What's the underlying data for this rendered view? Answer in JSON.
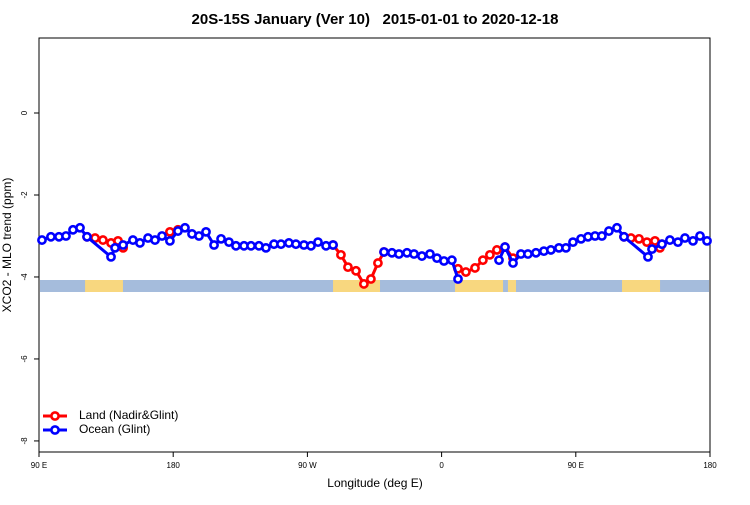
{
  "chart_data": {
    "type": "line",
    "title": "20S-15S January (Ver 10)   2015-01-01 to 2020-12-18",
    "x_label": "Longitude (deg E)",
    "y_label": "XCO2 - MLO trend (ppm)",
    "xlim": [
      90,
      540
    ],
    "ylim": [
      -8.27,
      1.83
    ],
    "xticks": [
      {
        "value": 90,
        "label": "90 E"
      },
      180,
      {
        "value": 270,
        "label": "90 W"
      },
      {
        "value": 360,
        "label": "0"
      },
      {
        "value": 450,
        "label": "90 E"
      },
      {
        "value": 540,
        "label": "180"
      }
    ],
    "yticks": [
      -8,
      -6,
      -4,
      -2,
      0
    ],
    "legend": "bottomleft",
    "land_spans": [
      [
        120.9,
        146.3
      ],
      [
        287.2,
        318.7
      ],
      [
        369.0,
        401.2
      ],
      [
        404.5,
        409.9
      ],
      [
        481.0,
        506.5
      ]
    ],
    "land_color": "#f8d77f",
    "ocean_color": "#a5bcdc",
    "series": [
      {
        "name": "Land (Nadir&Glint)",
        "color": "#ff0000",
        "x": [
          122.2,
          127.6,
          132.9,
          138.3,
          143.0,
          146.4,
          null,
          177.8,
          183.2,
          null,
          287.2,
          292.5,
          297.2,
          302.6,
          307.9,
          312.6,
          317.3,
          321.4,
          null,
          371.0,
          376.3,
          382.4,
          387.7,
          392.4,
          397.1,
          402.5,
          407.9,
          null,
          482.3,
          487.0,
          492.4,
          497.7,
          503.1,
          506.4,
          507.8
        ],
        "values": [
          -3.02,
          -3.05,
          -3.1,
          -3.17,
          -3.12,
          -3.29,
          null,
          -2.9,
          -2.85,
          null,
          -3.22,
          -3.46,
          -3.76,
          -3.85,
          -4.17,
          -4.05,
          -3.66,
          -3.39,
          null,
          -3.8,
          -3.88,
          -3.78,
          -3.59,
          -3.46,
          -3.34,
          -3.27,
          -3.54,
          null,
          -3.02,
          -3.05,
          -3.07,
          -3.15,
          -3.12,
          -3.29,
          -3.2
        ]
      },
      {
        "name": "Ocean (Glint)",
        "color": "#0000ff",
        "x": [
          92.0,
          98.0,
          103.4,
          108.1,
          112.8,
          117.5,
          122.2,
          138.3,
          141.0,
          146.4,
          153.0,
          157.7,
          163.1,
          167.8,
          172.5,
          177.8,
          183.2,
          187.9,
          192.6,
          197.3,
          202.0,
          207.4,
          212.1,
          217.4,
          222.1,
          227.5,
          232.2,
          237.5,
          242.2,
          247.6,
          252.3,
          257.6,
          262.3,
          267.7,
          272.4,
          277.1,
          282.5,
          287.2,
          null,
          321.4,
          326.7,
          331.4,
          336.8,
          341.5,
          346.8,
          352.2,
          356.9,
          361.6,
          366.9,
          371.0,
          null,
          398.5,
          402.5,
          407.9,
          413.2,
          417.9,
          423.3,
          428.6,
          433.3,
          438.7,
          443.4,
          448.1,
          453.5,
          458.2,
          462.9,
          467.5,
          472.2,
          477.6,
          482.3,
          498.4,
          501.1,
          507.8,
          513.1,
          518.5,
          523.2,
          528.6,
          533.3,
          538.0
        ],
        "values": [
          -3.1,
          -3.02,
          -3.02,
          -3.0,
          -2.85,
          -2.8,
          -3.02,
          -3.51,
          -3.29,
          -3.22,
          -3.1,
          -3.17,
          -3.05,
          -3.1,
          -3.0,
          -3.12,
          -2.88,
          -2.8,
          -2.95,
          -3.0,
          -2.9,
          -3.22,
          -3.07,
          -3.15,
          -3.24,
          -3.24,
          -3.24,
          -3.24,
          -3.29,
          -3.2,
          -3.2,
          -3.17,
          -3.2,
          -3.22,
          -3.24,
          -3.15,
          -3.24,
          -3.22,
          null,
          -3.39,
          -3.41,
          -3.44,
          -3.41,
          -3.44,
          -3.49,
          -3.44,
          -3.54,
          -3.61,
          -3.59,
          -4.05,
          null,
          -3.59,
          -3.27,
          -3.66,
          -3.44,
          -3.44,
          -3.41,
          -3.37,
          -3.34,
          -3.29,
          -3.29,
          -3.15,
          -3.07,
          -3.02,
          -3.0,
          -3.0,
          -2.88,
          -2.8,
          -3.02,
          -3.51,
          -3.32,
          -3.2,
          -3.1,
          -3.15,
          -3.05,
          -3.12,
          -3.0,
          -3.12
        ]
      }
    ]
  }
}
